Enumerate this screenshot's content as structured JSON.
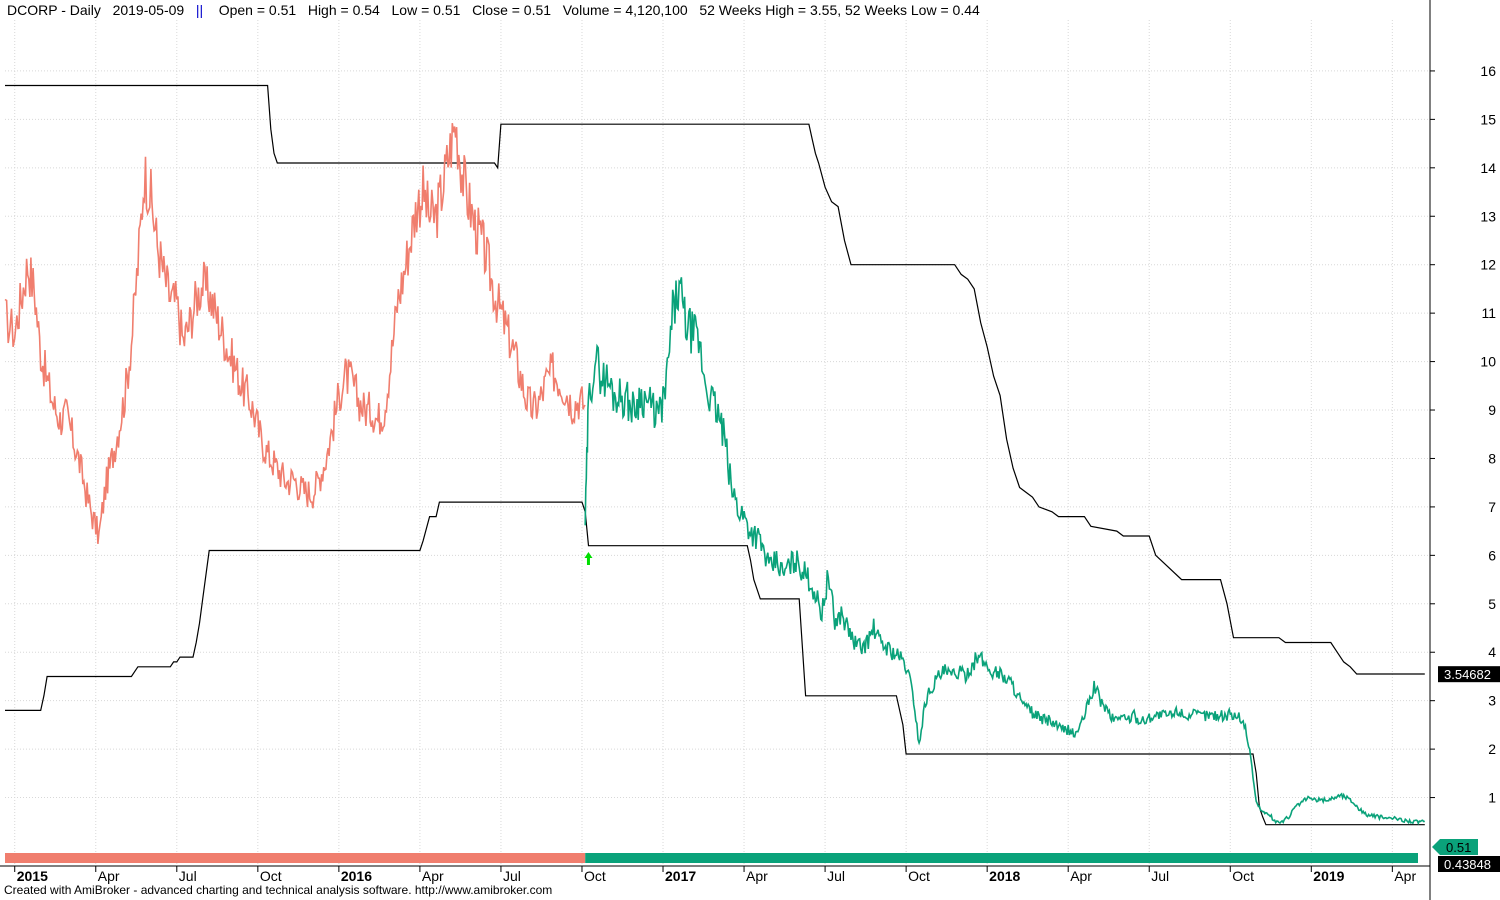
{
  "header": {
    "symbol": "DCORP",
    "period": "Daily",
    "date": "2019-05-09",
    "separator": "||",
    "open": "Open = 0.51",
    "high": "High = 0.54",
    "low": "Low = 0.51",
    "close": "Close = 0.51",
    "volume": "Volume = 4,120,100",
    "weeks": "52 Weeks High = 3.55, 52 Weeks Low = 0.44"
  },
  "footer": "Created with AmiBroker - advanced charting and technical analysis software. http://www.amibroker.com",
  "colors": {
    "bear": "#f07e6e",
    "bull": "#0aa27a",
    "envelope": "#000000",
    "grid": "#d8d8d8",
    "arrow": "#00dd00"
  },
  "chart_data": {
    "type": "line",
    "y_ticks": [
      "1",
      "2",
      "3",
      "4",
      "5",
      "6",
      "7",
      "8",
      "9",
      "10",
      "11",
      "12",
      "13",
      "14",
      "15",
      "16"
    ],
    "ylim": [
      0.0,
      16.5
    ],
    "x_tick_labels": [
      {
        "t": 2015.0,
        "label": "2015",
        "bold": true
      },
      {
        "t": 2015.25,
        "label": "Apr",
        "bold": false
      },
      {
        "t": 2015.5,
        "label": "Jul",
        "bold": false
      },
      {
        "t": 2015.75,
        "label": "Oct",
        "bold": false
      },
      {
        "t": 2016.0,
        "label": "2016",
        "bold": true
      },
      {
        "t": 2016.25,
        "label": "Apr",
        "bold": false
      },
      {
        "t": 2016.5,
        "label": "Jul",
        "bold": false
      },
      {
        "t": 2016.75,
        "label": "Oct",
        "bold": false
      },
      {
        "t": 2017.0,
        "label": "2017",
        "bold": true
      },
      {
        "t": 2017.25,
        "label": "Apr",
        "bold": false
      },
      {
        "t": 2017.5,
        "label": "Jul",
        "bold": false
      },
      {
        "t": 2017.75,
        "label": "Oct",
        "bold": false
      },
      {
        "t": 2018.0,
        "label": "2018",
        "bold": true
      },
      {
        "t": 2018.25,
        "label": "Apr",
        "bold": false
      },
      {
        "t": 2018.5,
        "label": "Jul",
        "bold": false
      },
      {
        "t": 2018.75,
        "label": "Oct",
        "bold": false
      },
      {
        "t": 2019.0,
        "label": "2019",
        "bold": true
      },
      {
        "t": 2019.25,
        "label": "Apr",
        "bold": false
      }
    ],
    "xlim": [
      2014.97,
      2019.36
    ],
    "bear_series": {
      "name": "",
      "x": [
        2014.97,
        2015.0,
        2015.02,
        2015.04,
        2015.06,
        2015.08,
        2015.1,
        2015.12,
        2015.14,
        2015.16,
        2015.18,
        2015.2,
        2015.22,
        2015.24,
        2015.26,
        2015.28,
        2015.3,
        2015.32,
        2015.34,
        2015.36,
        2015.38,
        2015.4,
        2015.42,
        2015.44,
        2015.46,
        2015.48,
        2015.5,
        2015.52,
        2015.54,
        2015.56,
        2015.58,
        2015.6,
        2015.62,
        2015.64,
        2015.66,
        2015.68,
        2015.7,
        2015.72,
        2015.74,
        2015.76,
        2015.78,
        2015.8,
        2015.82,
        2015.84,
        2015.86,
        2015.88,
        2015.9,
        2015.92,
        2015.94,
        2015.96,
        2015.98,
        2016.0,
        2016.02,
        2016.04,
        2016.06,
        2016.08,
        2016.1,
        2016.12,
        2016.14,
        2016.16,
        2016.18,
        2016.2,
        2016.22,
        2016.24,
        2016.26,
        2016.28,
        2016.3,
        2016.32,
        2016.34,
        2016.36,
        2016.38,
        2016.4,
        2016.42,
        2016.44,
        2016.46,
        2016.48,
        2016.5,
        2016.52,
        2016.54,
        2016.56,
        2016.58,
        2016.6,
        2016.62,
        2016.64,
        2016.66,
        2016.68,
        2016.7,
        2016.72,
        2016.74,
        2016.76
      ],
      "values": [
        10.9,
        10.6,
        11.3,
        12.0,
        11.5,
        10.2,
        9.6,
        9.1,
        8.8,
        8.9,
        8.4,
        7.9,
        7.3,
        6.8,
        6.4,
        7.4,
        8.0,
        8.6,
        9.3,
        10.4,
        12.0,
        13.9,
        13.4,
        12.4,
        11.8,
        11.3,
        11.2,
        10.4,
        10.8,
        11.3,
        11.6,
        11.4,
        11.0,
        10.6,
        10.2,
        9.9,
        9.5,
        9.3,
        8.9,
        8.4,
        8.1,
        7.9,
        7.7,
        7.5,
        7.6,
        7.4,
        7.3,
        7.3,
        7.6,
        8.0,
        8.6,
        9.3,
        9.7,
        9.6,
        9.2,
        9.0,
        9.0,
        8.8,
        9.0,
        10.0,
        11.2,
        11.8,
        12.5,
        13.2,
        13.5,
        13.0,
        13.0,
        13.6,
        14.3,
        14.9,
        13.9,
        13.3,
        12.8,
        12.5,
        12.0,
        11.4,
        11.0,
        10.6,
        10.2,
        9.7,
        9.2,
        9.0,
        9.2,
        9.6,
        9.8,
        9.6,
        9.4,
        9.1,
        9.2,
        9.1
      ]
    },
    "bull_series": {
      "name": "",
      "x": [
        2016.76,
        2016.77,
        2016.79,
        2016.81,
        2016.83,
        2016.85,
        2016.87,
        2016.89,
        2016.91,
        2016.93,
        2016.95,
        2016.97,
        2016.99,
        2017.01,
        2017.03,
        2017.05,
        2017.07,
        2017.09,
        2017.11,
        2017.13,
        2017.15,
        2017.17,
        2017.19,
        2017.21,
        2017.23,
        2017.25,
        2017.27,
        2017.29,
        2017.31,
        2017.33,
        2017.35,
        2017.37,
        2017.39,
        2017.41,
        2017.43,
        2017.45,
        2017.47,
        2017.49,
        2017.51,
        2017.53,
        2017.55,
        2017.57,
        2017.59,
        2017.61,
        2017.63,
        2017.65,
        2017.67,
        2017.69,
        2017.71,
        2017.73,
        2017.75,
        2017.77,
        2017.79,
        2017.81,
        2017.83,
        2017.85,
        2017.87,
        2017.89,
        2017.91,
        2017.93,
        2017.95,
        2017.97,
        2017.99,
        2018.01,
        2018.03,
        2018.05,
        2018.07,
        2018.09,
        2018.11,
        2018.13,
        2018.15,
        2018.17,
        2018.19,
        2018.21,
        2018.23,
        2018.25,
        2018.27,
        2018.29,
        2018.31,
        2018.33,
        2018.35,
        2018.37,
        2018.39,
        2018.41,
        2018.43,
        2018.45,
        2018.47,
        2018.49,
        2018.51,
        2018.53,
        2018.55,
        2018.57,
        2018.59,
        2018.61,
        2018.63,
        2018.65,
        2018.67,
        2018.69,
        2018.71,
        2018.73,
        2018.75,
        2018.77,
        2018.79,
        2018.81,
        2018.83,
        2018.85,
        2018.87,
        2018.89,
        2018.91,
        2018.93,
        2018.95,
        2018.97,
        2018.99,
        2019.01,
        2019.03,
        2019.05,
        2019.07,
        2019.09,
        2019.11,
        2019.13,
        2019.15,
        2019.17,
        2019.19,
        2019.21,
        2019.23,
        2019.25,
        2019.27,
        2019.29,
        2019.31,
        2019.33,
        2019.35
      ],
      "values": [
        6.7,
        9.1,
        10.1,
        9.7,
        9.6,
        9.3,
        9.3,
        9.2,
        9.0,
        9.3,
        9.2,
        9.0,
        8.9,
        9.5,
        11.0,
        11.5,
        10.8,
        10.6,
        10.4,
        9.6,
        9.2,
        8.9,
        8.4,
        7.4,
        7.0,
        6.8,
        6.5,
        6.4,
        6.1,
        5.7,
        5.9,
        5.6,
        5.8,
        5.9,
        5.7,
        5.5,
        5.2,
        4.8,
        5.6,
        4.6,
        4.8,
        4.5,
        4.2,
        4.1,
        4.2,
        4.5,
        4.2,
        4.1,
        4.0,
        3.9,
        3.7,
        3.2,
        2.1,
        3.0,
        3.3,
        3.5,
        3.6,
        3.5,
        3.6,
        3.5,
        3.7,
        3.9,
        3.8,
        3.6,
        3.6,
        3.5,
        3.4,
        3.2,
        2.9,
        2.8,
        2.7,
        2.6,
        2.6,
        2.5,
        2.4,
        2.4,
        2.3,
        2.5,
        2.9,
        3.3,
        3.0,
        2.8,
        2.6,
        2.7,
        2.6,
        2.7,
        2.6,
        2.6,
        2.7,
        2.7,
        2.7,
        2.7,
        2.8,
        2.7,
        2.7,
        2.7,
        2.7,
        2.7,
        2.7,
        2.7,
        2.7,
        2.7,
        2.6,
        2.0,
        0.9,
        0.7,
        0.65,
        0.5,
        0.5,
        0.6,
        0.8,
        0.9,
        1.0,
        0.95,
        0.95,
        0.95,
        1.0,
        1.05,
        1.0,
        0.9,
        0.75,
        0.65,
        0.62,
        0.6,
        0.58,
        0.57,
        0.55,
        0.53,
        0.51,
        0.5,
        0.51
      ]
    },
    "high52": {
      "name": "",
      "x": [
        2014.97,
        2015.78,
        2015.79,
        2015.8,
        2015.81,
        2016.0,
        2016.48,
        2016.49,
        2016.5,
        2016.51,
        2017.0,
        2017.45,
        2017.46,
        2017.47,
        2017.48,
        2017.5,
        2017.52,
        2017.54,
        2017.56,
        2017.58,
        2017.6,
        2017.62,
        2017.64,
        2017.9,
        2017.92,
        2017.94,
        2017.96,
        2017.98,
        2018.0,
        2018.02,
        2018.04,
        2018.06,
        2018.08,
        2018.1,
        2018.12,
        2018.14,
        2018.16,
        2018.2,
        2018.22,
        2018.3,
        2018.32,
        2018.4,
        2018.42,
        2018.5,
        2018.52,
        2018.6,
        2018.62,
        2018.72,
        2018.74,
        2018.76,
        2018.9,
        2018.92,
        2018.94,
        2019.06,
        2019.08,
        2019.1,
        2019.12,
        2019.14,
        2019.35
      ],
      "values": [
        15.7,
        15.7,
        14.8,
        14.3,
        14.1,
        14.1,
        14.1,
        14.0,
        14.9,
        14.9,
        14.9,
        14.9,
        14.6,
        14.3,
        14.1,
        13.6,
        13.3,
        13.2,
        12.5,
        12.0,
        12.0,
        12.0,
        12.0,
        12.0,
        11.8,
        11.7,
        11.5,
        10.8,
        10.3,
        9.7,
        9.3,
        8.4,
        7.8,
        7.4,
        7.3,
        7.2,
        7.0,
        6.9,
        6.8,
        6.8,
        6.6,
        6.5,
        6.4,
        6.4,
        6.0,
        5.5,
        5.5,
        5.5,
        5.0,
        4.3,
        4.3,
        4.2,
        4.2,
        4.2,
        4.0,
        3.8,
        3.7,
        3.55,
        3.55
      ]
    },
    "low52": {
      "name": "",
      "x": [
        2014.97,
        2015.08,
        2015.09,
        2015.1,
        2015.36,
        2015.37,
        2015.38,
        2015.48,
        2015.49,
        2015.5,
        2015.51,
        2015.55,
        2015.56,
        2015.57,
        2015.58,
        2015.6,
        2015.8,
        2016.25,
        2016.26,
        2016.28,
        2016.3,
        2016.31,
        2016.75,
        2016.76,
        2016.77,
        2017.26,
        2017.27,
        2017.28,
        2017.3,
        2017.32,
        2017.42,
        2017.44,
        2017.72,
        2017.74,
        2017.75,
        2018.82,
        2018.83,
        2018.84,
        2018.85,
        2018.86,
        2019.35
      ],
      "values": [
        2.8,
        2.8,
        3.1,
        3.5,
        3.5,
        3.6,
        3.7,
        3.7,
        3.8,
        3.8,
        3.9,
        3.9,
        4.2,
        4.6,
        5.1,
        6.1,
        6.1,
        6.1,
        6.3,
        6.8,
        6.8,
        7.1,
        7.1,
        6.9,
        6.2,
        6.2,
        5.9,
        5.5,
        5.1,
        5.1,
        5.1,
        3.1,
        3.1,
        2.5,
        1.9,
        1.9,
        1.5,
        0.8,
        0.6,
        0.44,
        0.44
      ]
    },
    "signal_arrow": {
      "x": 2016.77,
      "label": ""
    },
    "last_close_label": "0.51",
    "high52_label": "3.54682",
    "low52_label": "0.43848",
    "trend_bar": {
      "switch_x": 2016.76,
      "start": "bear",
      "end": "bull"
    }
  }
}
